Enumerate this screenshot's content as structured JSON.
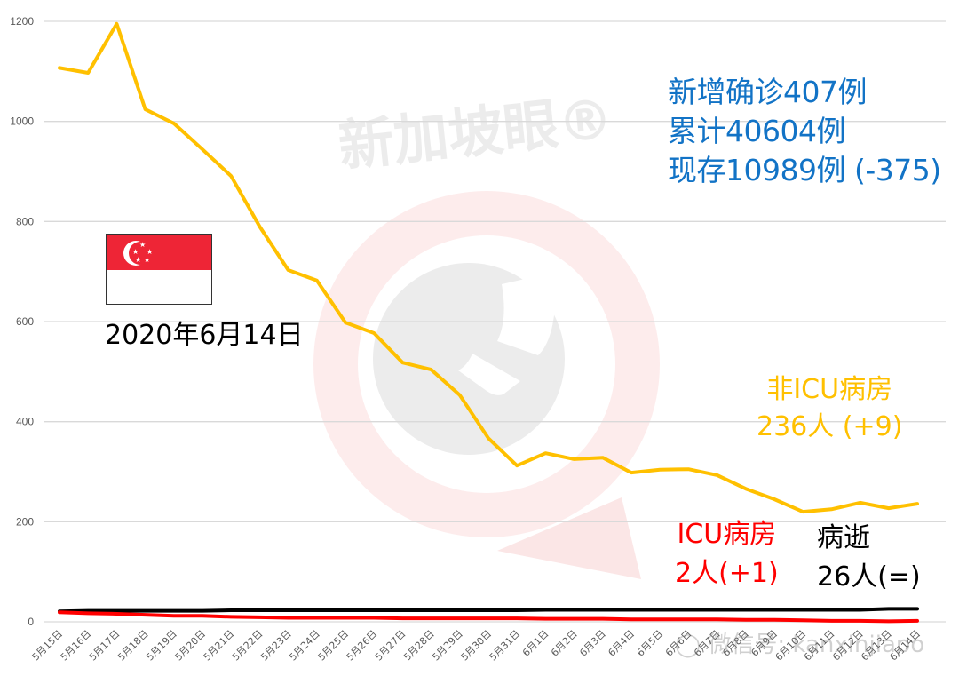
{
  "chart_data": {
    "type": "line",
    "title": "",
    "xlabel": "",
    "ylabel": "",
    "ylim": [
      0,
      1200
    ],
    "yticks": [
      0,
      200,
      400,
      600,
      800,
      1000,
      1200
    ],
    "grid": true,
    "legend": "none (inline annotations)",
    "categories": [
      "5月15日",
      "5月16日",
      "5月17日",
      "5月18日",
      "5月19日",
      "5月20日",
      "5月21日",
      "5月22日",
      "5月23日",
      "5月24日",
      "5月25日",
      "5月26日",
      "5月27日",
      "5月28日",
      "5月29日",
      "5月30日",
      "5月31日",
      "6月1日",
      "6月2日",
      "6月3日",
      "6月4日",
      "6月5日",
      "6月6日",
      "6月7日",
      "6月8日",
      "6月9日",
      "6月10日",
      "6月11日",
      "6月12日",
      "6月13日",
      "6月14日"
    ],
    "series": [
      {
        "name": "非ICU病房",
        "color": "#ffc000",
        "values": [
          1107,
          1097,
          1195,
          1024,
          996,
          944,
          891,
          790,
          703,
          682,
          598,
          577,
          518,
          504,
          453,
          367,
          312,
          337,
          325,
          328,
          298,
          304,
          305,
          293,
          266,
          245,
          220,
          225,
          238,
          227,
          236
        ]
      },
      {
        "name": "病逝",
        "color": "#000000",
        "values": [
          21,
          22,
          22,
          22,
          22,
          22,
          23,
          23,
          23,
          23,
          23,
          23,
          23,
          23,
          23,
          23,
          23,
          24,
          24,
          24,
          24,
          24,
          24,
          24,
          24,
          24,
          24,
          24,
          24,
          26,
          26
        ]
      },
      {
        "name": "ICU病房",
        "color": "#ff0000",
        "values": [
          19,
          17,
          16,
          14,
          12,
          12,
          10,
          9,
          8,
          8,
          8,
          8,
          7,
          7,
          7,
          7,
          7,
          6,
          6,
          6,
          5,
          5,
          5,
          5,
          4,
          4,
          3,
          2,
          2,
          1,
          2
        ]
      }
    ],
    "annotations": [
      "新增确诊407例",
      "累计40604例",
      "现存10989例 (-375)",
      "2020年6月14日",
      "非ICU病房 236人 (+9)",
      "ICU病房 2人(+1)",
      "病逝 26人(=)"
    ]
  },
  "summary": {
    "new_cases": "新增确诊407例",
    "cumulative": "累计40604例",
    "active": "现存10989例 (-375)"
  },
  "date_label": "2020年6月14日",
  "labels": {
    "non_icu_title": "非ICU病房",
    "non_icu_value": "236人 (+9)",
    "icu_title": "ICU病房",
    "icu_value": "2人(+1)",
    "death_title": "病逝",
    "death_value": "26人(=)"
  },
  "watermark": {
    "brand": "新加坡眼®",
    "wechat": "微信号: kanxinjiapo"
  },
  "colors": {
    "non_icu": "#ffc000",
    "icu": "#ff0000",
    "death": "#000000",
    "summary_text": "#1273c6",
    "flag_red": "#ee2536"
  },
  "flag": "singapore-flag"
}
